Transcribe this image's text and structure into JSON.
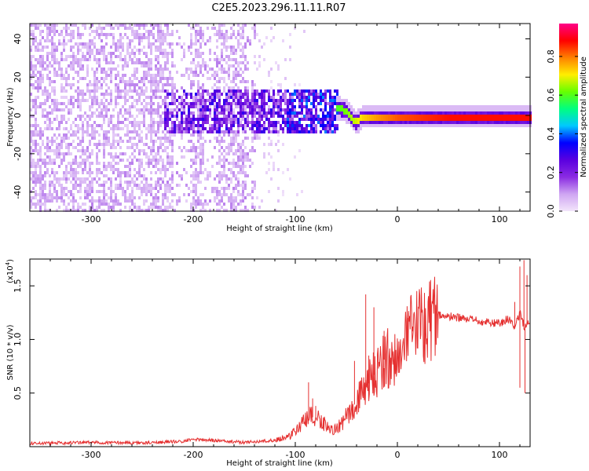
{
  "title": "C2E5.2023.296.11.11.R07",
  "chart_data": [
    {
      "type": "heatmap",
      "title": "C2E5.2023.296.11.11.R07",
      "xlabel": "Height of straight line (km)",
      "ylabel": "Frequency (Hz)",
      "xlim": [
        -360,
        130
      ],
      "ylim": [
        -50,
        48
      ],
      "xticks": [
        -300,
        -200,
        -100,
        0,
        100
      ],
      "yticks": [
        -40,
        -20,
        0,
        20,
        40
      ],
      "colorbar": {
        "label": "Normalized spectral amplitude",
        "range": [
          0.0,
          0.97
        ],
        "ticks": [
          0.0,
          0.2,
          0.4,
          0.6,
          0.8
        ],
        "colormap": [
          "#f3e6fb",
          "#cfa5f2",
          "#8a2be2",
          "#5a00e0",
          "#0000ff",
          "#00c8ff",
          "#00ff80",
          "#66ff00",
          "#ffee00",
          "#ff8000",
          "#ff0000",
          "#ff0088"
        ]
      },
      "features": [
        {
          "name": "noise",
          "x_range": [
            -360,
            -140
          ],
          "y_range": [
            -50,
            48
          ],
          "amplitude": 0.1
        },
        {
          "name": "band",
          "x_range": [
            -230,
            -60
          ],
          "y_range": [
            -8,
            14
          ],
          "amplitude": 0.25
        },
        {
          "name": "signal",
          "x": [
            -62,
            -50,
            -42,
            -35,
            -20,
            0,
            50,
            100,
            130
          ],
          "y": [
            5,
            3,
            -3,
            0,
            0,
            0,
            0,
            0,
            0
          ],
          "amplitude": [
            0.6,
            0.65,
            0.7,
            0.75,
            0.8,
            0.85,
            0.9,
            0.9,
            0.9
          ]
        }
      ]
    },
    {
      "type": "line",
      "xlabel": "Height of straight line (km)",
      "ylabel": "SNR (10 * v/v)",
      "yscale_label": "(x10",
      "yscale_exp": "4",
      "xlim": [
        -360,
        130
      ],
      "ylim": [
        0,
        17500
      ],
      "xticks": [
        -300,
        -200,
        -100,
        0,
        100
      ],
      "yticks": [
        5000,
        10000,
        15000
      ],
      "ytick_labels": [
        "0.5",
        "1.0",
        "1.5"
      ],
      "color": "#e53030",
      "series": [
        {
          "x": [
            -360,
            -300,
            -250,
            -210,
            -200,
            -150,
            -120,
            -105,
            -95,
            -85,
            -75,
            -65,
            -55,
            -45,
            -38,
            -30,
            -25,
            -20,
            -15,
            -10,
            -5,
            0,
            10,
            20,
            30,
            40,
            60,
            80,
            100,
            110,
            115,
            120,
            125,
            130
          ],
          "y": [
            300,
            400,
            350,
            500,
            700,
            400,
            600,
            1000,
            2000,
            2800,
            2500,
            1500,
            2000,
            3500,
            4500,
            5500,
            6500,
            7000,
            8000,
            8300,
            8400,
            8000,
            10000,
            11500,
            12000,
            12300,
            12000,
            11700,
            11500,
            12000,
            11000,
            12500,
            11000,
            12000
          ],
          "spikes": [
            {
              "x": [
                -87,
                -83,
                -80
              ],
              "y": [
                6000,
                4500,
                3800
              ]
            },
            {
              "x": [
                -42,
                -31,
                -28
              ],
              "y": [
                8000,
                14200,
                8500
              ]
            },
            {
              "x": [
                -23,
                -13
              ],
              "y": [
                13000,
                10800
              ]
            },
            {
              "x": [
                10,
                15
              ],
              "y": [
                12000,
                11200
              ]
            },
            {
              "x": [
                115,
                120,
                124,
                127
              ],
              "y": [
                13500,
                16800,
                17400,
                16000
              ]
            }
          ],
          "dips": [
            {
              "x": [
                120,
                125
              ],
              "y": [
                5500,
                5000
              ]
            }
          ]
        }
      ]
    }
  ]
}
